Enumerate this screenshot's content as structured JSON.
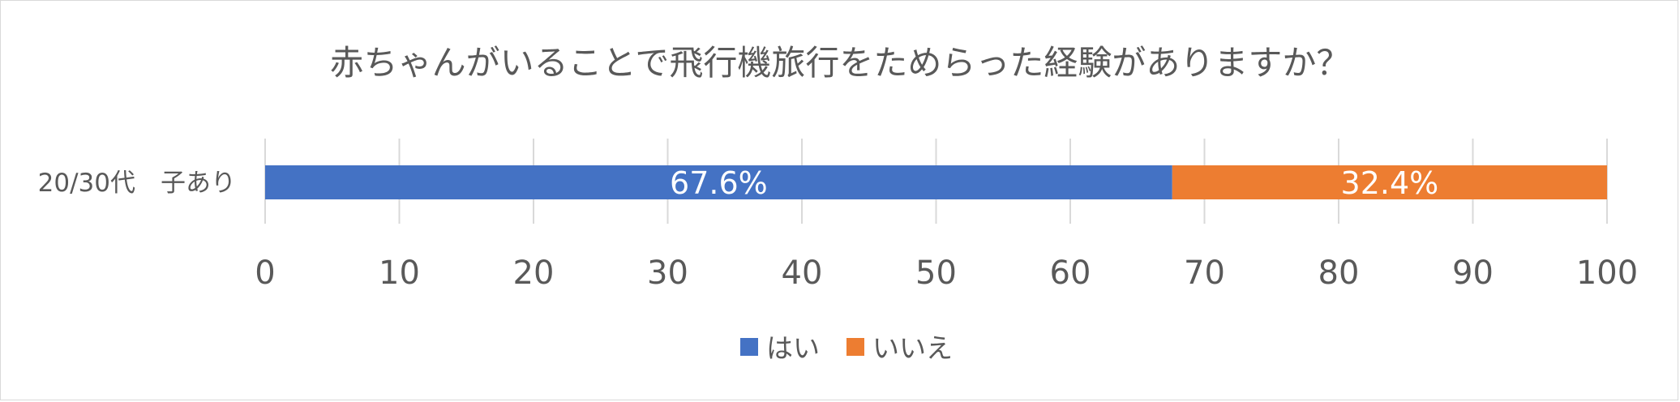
{
  "chart_data": {
    "type": "bar",
    "orientation": "horizontal",
    "stacked": true,
    "title": "赤ちゃんがいることで飛行機旅行をためらった経験がありますか？",
    "categories": [
      "20/30代　子あり"
    ],
    "series": [
      {
        "name": "はい",
        "values": [
          67.6
        ],
        "labels": [
          "67.6%"
        ],
        "color": "#4472C4"
      },
      {
        "name": "いいえ",
        "values": [
          32.4
        ],
        "labels": [
          "32.4%"
        ],
        "color": "#ED7D31"
      }
    ],
    "xlim": [
      0,
      100
    ],
    "xticks": [
      "0",
      "10",
      "20",
      "30",
      "40",
      "50",
      "60",
      "70",
      "80",
      "90",
      "100"
    ],
    "grid": true,
    "legend": "bottom"
  }
}
